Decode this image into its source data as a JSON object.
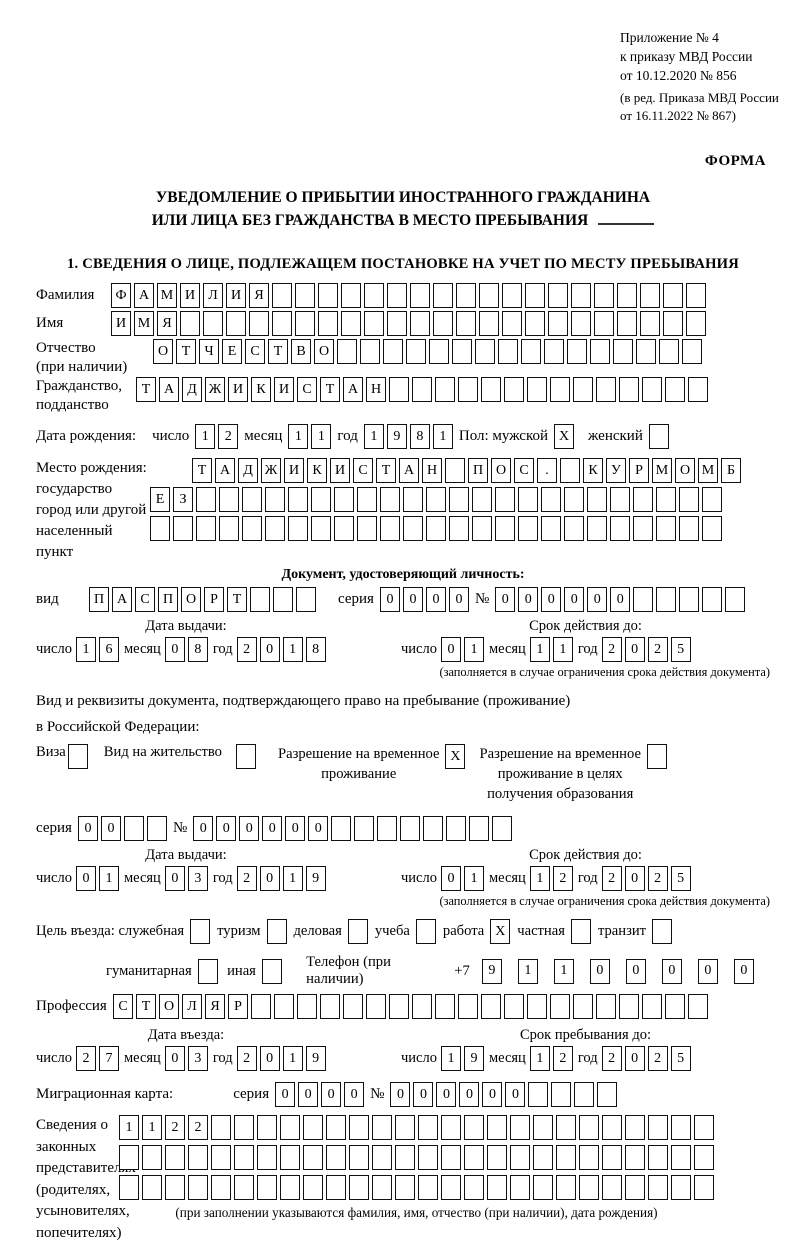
{
  "header": {
    "appendix": [
      "Приложение № 4",
      "к приказу МВД России",
      "от 10.12.2020 № 856"
    ],
    "appendix_note": [
      "(в ред. Приказа МВД России",
      "от 16.11.2022 № 867)"
    ],
    "form_marker": "ФОРМА"
  },
  "title": {
    "line1": "УВЕДОМЛЕНИЕ О ПРИБЫТИИ ИНОСТРАННОГО ГРАЖДАНИНА",
    "line2": "ИЛИ ЛИЦА БЕЗ ГРАЖДАНСТВА В МЕСТО ПРЕБЫВАНИЯ"
  },
  "section1_heading": "1. СВЕДЕНИЯ О ЛИЦЕ, ПОДЛЕЖАЩЕМ ПОСТАНОВКЕ НА УЧЕТ ПО МЕСТУ ПРЕБЫВАНИЯ",
  "labels": {
    "surname": "Фамилия",
    "name": "Имя",
    "patronymic_1": "Отчество",
    "patronymic_2": "(при наличии)",
    "citizenship_1": "Гражданство,",
    "citizenship_2": "подданство",
    "birth_date": "Дата рождения:",
    "day": "число",
    "month": "месяц",
    "year": "год",
    "sex_male": "Пол: мужской",
    "sex_female": "женский",
    "birth_place": "Место рождения:",
    "state": "государство",
    "city_1": "город или другой",
    "city_2": "населенный пункт",
    "id_doc_header": "Документ, удостоверяющий личность:",
    "doc_type": "вид",
    "series": "серия",
    "number": "№",
    "issue_date": "Дата выдачи:",
    "valid_until": "Срок действия до:",
    "valid_note": "(заполняется в случае ограничения срока действия документа)",
    "res_doc_line1": "Вид и реквизиты документа, подтверждающего право на пребывание (проживание)",
    "res_doc_line2": "в Российской Федерации:",
    "visa": "Виза",
    "residence_permit": "Вид на жительство",
    "temp_residence_1": "Разрешение на временное",
    "temp_residence_2": "проживание",
    "temp_residence_edu_1": "Разрешение на временное",
    "temp_residence_edu_2": "проживание в целях",
    "temp_residence_edu_3": "получения образования",
    "purpose": "Цель въезда: служебная",
    "tourism": "туризм",
    "business": "деловая",
    "study": "учеба",
    "work": "работа",
    "private": "частная",
    "transit": "транзит",
    "humanitarian": "гуманитарная",
    "other": "иная",
    "phone": "Телефон (при наличии)",
    "phone_prefix": "+7",
    "profession": "Профессия",
    "entry_date": "Дата въезда:",
    "stay_until": "Срок пребывания до:",
    "migration_card": "Миграционная карта:",
    "representatives": [
      "Сведения о",
      "законных",
      "представителях",
      "(родителях,",
      "усыновителях,",
      "попечителях)"
    ],
    "representatives_note": "(при заполнении указываются фамилия, имя, отчество (при наличии), дата рождения)"
  },
  "fields": {
    "surname": {
      "value": "ФАМИЛИЯ",
      "count": 26
    },
    "name": {
      "value": "ИМЯ",
      "count": 26
    },
    "patronymic": {
      "value": "ОТЧЕСТВО",
      "count": 24
    },
    "citizenship": {
      "value": "ТАДЖИКИСТАН",
      "count": 25
    },
    "birth_day": {
      "value": "12",
      "count": 2
    },
    "birth_month": {
      "value": "11",
      "count": 2
    },
    "birth_year": {
      "value": "1981",
      "count": 4
    },
    "sex_male": {
      "value": "X",
      "count": 1
    },
    "sex_female": {
      "value": "",
      "count": 1
    },
    "birth_place_1": {
      "value": "ТАДЖИКИСТАН ПОС. КУРМОМБ",
      "count": 24
    },
    "birth_place_2": {
      "value": "ЕЗ",
      "count": 25
    },
    "birth_place_3": {
      "value": "",
      "count": 25
    },
    "id_doc_type": {
      "value": "ПАСПОРТ",
      "count": 10
    },
    "id_doc_series": {
      "value": "0000",
      "count": 4
    },
    "id_doc_number": {
      "value": "000000",
      "count": 11
    },
    "id_issue_day": {
      "value": "16",
      "count": 2
    },
    "id_issue_month": {
      "value": "08",
      "count": 2
    },
    "id_issue_year": {
      "value": "2018",
      "count": 4
    },
    "id_valid_day": {
      "value": "01",
      "count": 2
    },
    "id_valid_month": {
      "value": "11",
      "count": 2
    },
    "id_valid_year": {
      "value": "2025",
      "count": 4
    },
    "visa": {
      "value": "",
      "count": 1
    },
    "residence_permit": {
      "value": "",
      "count": 1
    },
    "temp_residence": {
      "value": "X",
      "count": 1
    },
    "temp_residence_edu": {
      "value": "",
      "count": 1
    },
    "res_doc_series": {
      "value": "00",
      "count": 4
    },
    "res_doc_number": {
      "value": "000000",
      "count": 14
    },
    "res_issue_day": {
      "value": "01",
      "count": 2
    },
    "res_issue_month": {
      "value": "03",
      "count": 2
    },
    "res_issue_year": {
      "value": "2019",
      "count": 4
    },
    "res_valid_day": {
      "value": "01",
      "count": 2
    },
    "res_valid_month": {
      "value": "12",
      "count": 2
    },
    "res_valid_year": {
      "value": "2025",
      "count": 4
    },
    "purpose_official": {
      "value": "",
      "count": 1
    },
    "purpose_tourism": {
      "value": "",
      "count": 1
    },
    "purpose_business": {
      "value": "",
      "count": 1
    },
    "purpose_study": {
      "value": "",
      "count": 1
    },
    "purpose_work": {
      "value": "X",
      "count": 1
    },
    "purpose_private": {
      "value": "",
      "count": 1
    },
    "purpose_transit": {
      "value": "",
      "count": 1
    },
    "purpose_humanitarian": {
      "value": "",
      "count": 1
    },
    "purpose_other": {
      "value": "",
      "count": 1
    },
    "phone": {
      "value": "911000000",
      "count": 10
    },
    "profession": {
      "value": "СТОЛЯР",
      "count": 26
    },
    "entry_day": {
      "value": "27",
      "count": 2
    },
    "entry_month": {
      "value": "03",
      "count": 2
    },
    "entry_year": {
      "value": "2019",
      "count": 4
    },
    "stay_day": {
      "value": "19",
      "count": 2
    },
    "stay_month": {
      "value": "12",
      "count": 2
    },
    "stay_year": {
      "value": "2025",
      "count": 4
    },
    "migr_series": {
      "value": "0000",
      "count": 4
    },
    "migr_number": {
      "value": "000000",
      "count": 10
    },
    "representatives_1": {
      "value": "1122",
      "count": 26
    },
    "representatives_2": {
      "value": "",
      "count": 26
    },
    "representatives_3": {
      "value": "",
      "count": 26
    }
  }
}
